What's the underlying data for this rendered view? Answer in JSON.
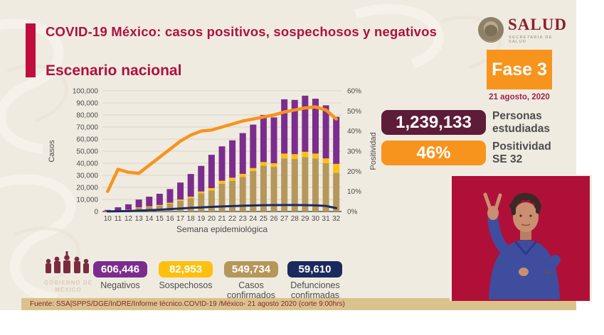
{
  "header": {
    "title": "COVID-19 México: casos positivos, sospechosos y negativos",
    "subtitle": "Escenario nacional"
  },
  "logo": {
    "name": "SALUD",
    "subtitle": "SECRETARÍA DE SALUD"
  },
  "phase": {
    "label": "Fase 3",
    "date": "21 agosto, 2020"
  },
  "kpis": [
    {
      "value": "1,239,133",
      "label_line1": "Personas",
      "label_line2": "estudiadas",
      "color": "#5d1c38"
    },
    {
      "value": "46%",
      "label_line1": "Positividad",
      "label_line2": "SE 32",
      "color": "#f7941e"
    }
  ],
  "totals": [
    {
      "value": "606,446",
      "label": "Negativos",
      "color": "#7b2d8e"
    },
    {
      "value": "82,953",
      "label": "Sospechosos",
      "color": "#fdc010"
    },
    {
      "value": "549,734",
      "label": "Casos confirmados",
      "color": "#b5975a"
    },
    {
      "value": "59,610",
      "label": "Defunciones confirmadas",
      "color": "#1b2a5e"
    }
  ],
  "footer": {
    "source": "Fuente: SSA|SPPS/DGE/InDRE/Informe técnico.COVID-19 /México- 21 agosto 2020 (corte 9:00hrs)"
  },
  "watermark": {
    "line1": "GOBIERNO DE",
    "line2": "MÉXICO"
  },
  "chart_data": {
    "type": "combo-stacked-bar-line",
    "xlabel": "Semana epidemiológica",
    "weeks": [
      "10",
      "11",
      "12",
      "13",
      "14",
      "15",
      "16",
      "17",
      "18",
      "19",
      "20",
      "21",
      "22",
      "23",
      "24",
      "25",
      "26",
      "27",
      "28",
      "29",
      "30",
      "31",
      "32"
    ],
    "left_axis": {
      "label": "Casos",
      "min": 0,
      "max": 100000,
      "ticks": [
        "0",
        "10,000",
        "20,000",
        "30,000",
        "40,000",
        "50,000",
        "60,000",
        "70,000",
        "80,000",
        "90,000",
        "100,000"
      ]
    },
    "right_axis": {
      "label": "Positividad",
      "min": 0,
      "max": 60,
      "ticks": [
        "0%",
        "10%",
        "20%",
        "30%",
        "40%",
        "50%",
        "60%"
      ]
    },
    "grid": "horizontal",
    "series": [
      {
        "name": "Casos confirmados",
        "type": "bar",
        "color": "#b5975a",
        "values": [
          300,
          600,
          1200,
          3000,
          3800,
          4800,
          6500,
          8900,
          10900,
          15000,
          17400,
          23000,
          25500,
          28700,
          33500,
          38000,
          37000,
          44000,
          43500,
          45000,
          44000,
          40000,
          32000
        ]
      },
      {
        "name": "Sospechosos",
        "type": "bar",
        "color": "#fdc010",
        "values": [
          100,
          200,
          300,
          400,
          500,
          600,
          800,
          1000,
          1400,
          1600,
          2000,
          2500,
          2500,
          2500,
          2500,
          3000,
          3000,
          4000,
          4000,
          4500,
          4000,
          4000,
          7500
        ]
      },
      {
        "name": "Negativos",
        "type": "bar",
        "color": "#7b2d8e",
        "values": [
          900,
          2700,
          4500,
          6500,
          8000,
          9300,
          11300,
          14100,
          18800,
          21200,
          27600,
          28500,
          31000,
          33800,
          36000,
          39000,
          38000,
          45000,
          45000,
          46500,
          45500,
          44000,
          39000
        ]
      },
      {
        "name": "Defunciones confirmadas",
        "type": "line",
        "axis": "left",
        "color": "#1b2a5e",
        "values": [
          100,
          200,
          400,
          700,
          1100,
          1500,
          2000,
          2500,
          3000,
          3400,
          3800,
          4200,
          4500,
          4800,
          5000,
          5200,
          5300,
          5400,
          5400,
          5300,
          5100,
          4600,
          2800
        ]
      },
      {
        "name": "Positividad",
        "type": "line",
        "axis": "right",
        "color": "#f7941e",
        "values": [
          10,
          21,
          19.5,
          19,
          23,
          27,
          31,
          35,
          38,
          40,
          40.5,
          42,
          43.5,
          45,
          46,
          47,
          48,
          49.5,
          50.5,
          51.5,
          52,
          50.5,
          46
        ]
      }
    ]
  }
}
